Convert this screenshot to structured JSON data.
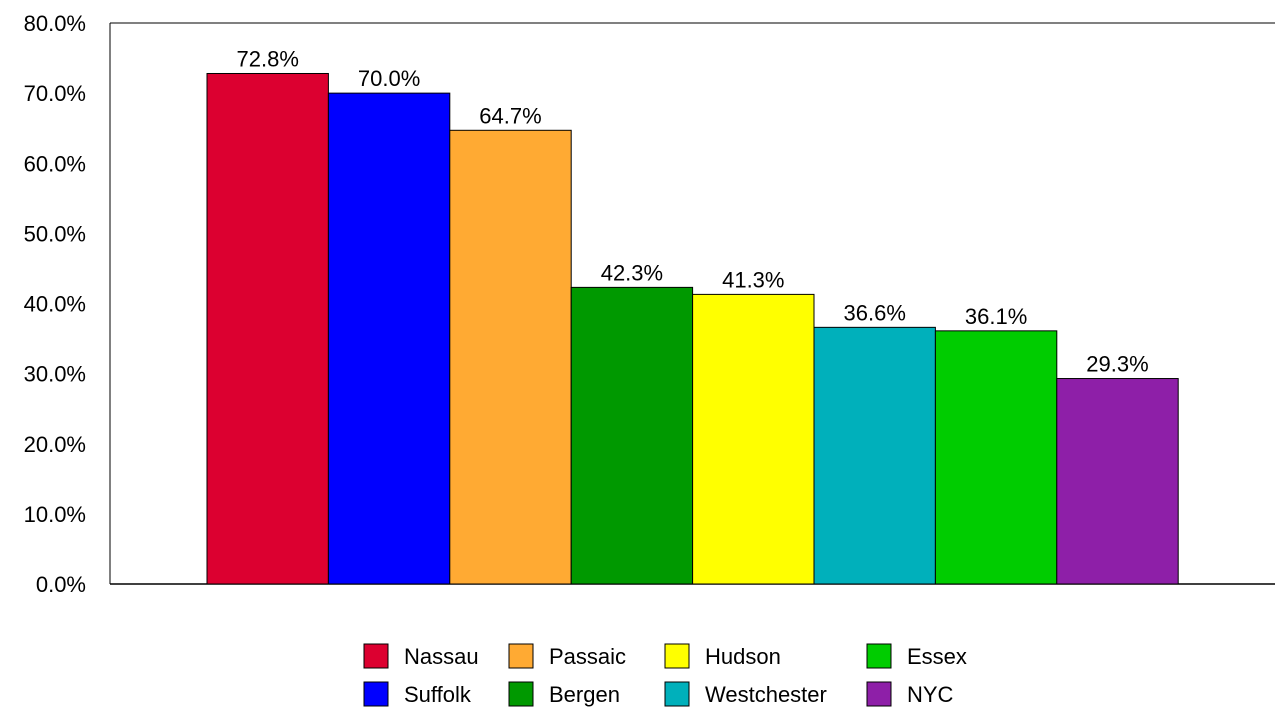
{
  "chart_data": {
    "type": "bar",
    "categories": [
      "Nassau",
      "Suffolk",
      "Passaic",
      "Bergen",
      "Hudson",
      "Westchester",
      "Essex",
      "NYC"
    ],
    "series": [
      {
        "values": [
          72.8,
          70.0,
          64.7,
          42.3,
          41.3,
          36.6,
          36.1,
          29.3
        ]
      }
    ],
    "data_labels": [
      "72.8%",
      "70.0%",
      "64.7%",
      "42.3%",
      "41.3%",
      "36.6%",
      "36.1%",
      "29.3%"
    ],
    "colors": [
      "#dc0030",
      "#0000ff",
      "#ffaa33",
      "#009900",
      "#ffff00",
      "#00b0bb",
      "#00cc00",
      "#8e1fa8"
    ],
    "y_ticks": [
      0,
      10,
      20,
      30,
      40,
      50,
      60,
      70,
      80
    ],
    "y_tick_labels": [
      "0.0%",
      "10.0%",
      "20.0%",
      "30.0%",
      "40.0%",
      "50.0%",
      "60.0%",
      "70.0%",
      "80.0%"
    ],
    "ylim": [
      0,
      80
    ],
    "title": "",
    "xlabel": "",
    "ylabel": "",
    "grid": false,
    "legend": {
      "placement": "bottom-center",
      "entries": [
        "Nassau",
        "Suffolk",
        "Passaic",
        "Bergen",
        "Hudson",
        "Westchester",
        "Essex",
        "NYC"
      ]
    }
  }
}
